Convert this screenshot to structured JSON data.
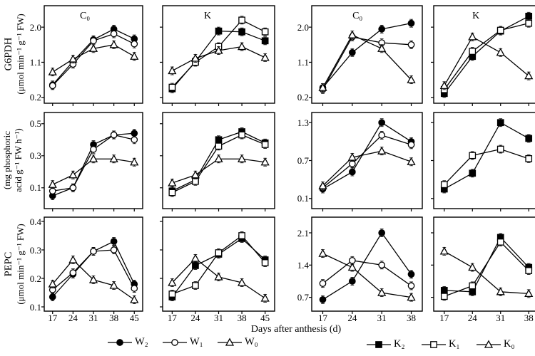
{
  "figure": {
    "xlabel": "Days after anthesis (d)",
    "rows": [
      {
        "line1": "G6PDH",
        "line2": "(μmol min⁻¹ g⁻¹ FW)"
      },
      {
        "line1": "(mg phosphoric",
        "line2": "acid g⁻¹ FW h⁻¹)"
      },
      {
        "line1": "PEPC",
        "line2": "(μmol min⁻¹ g⁻¹ FW)"
      }
    ],
    "colors": {
      "foreground": "#000000",
      "background": "#ffffff"
    }
  },
  "legend": {
    "left": [
      {
        "label": "W₂",
        "marker": "filled-circle"
      },
      {
        "label": "W₁",
        "marker": "open-circle"
      },
      {
        "label": "W₀",
        "marker": "open-triangle"
      }
    ],
    "right": [
      {
        "label": "K₂",
        "marker": "filled-square"
      },
      {
        "label": "K₁",
        "marker": "open-square"
      },
      {
        "label": "K₀",
        "marker": "open-triangle"
      }
    ]
  },
  "chart_data": {
    "type": "line",
    "xlabel": "Days after anthesis (d)",
    "grid": false,
    "error_bars": true,
    "panels": [
      {
        "name": "g6pdh-c0-water",
        "group": "left",
        "row": 0,
        "col": 0,
        "title": "C₀",
        "x": [
          17,
          24,
          31,
          38,
          45
        ],
        "ylim": [
          0.05,
          2.55
        ],
        "yticks": [
          0.2,
          1.1,
          2.0
        ],
        "series": [
          {
            "name": "W₂",
            "marker": "filled-circle",
            "values": [
              0.52,
              1.12,
              1.68,
              1.95,
              1.7
            ]
          },
          {
            "name": "W₁",
            "marker": "open-circle",
            "values": [
              0.5,
              1.05,
              1.65,
              1.83,
              1.57
            ]
          },
          {
            "name": "W₀",
            "marker": "open-triangle",
            "values": [
              0.85,
              1.18,
              1.45,
              1.55,
              1.25
            ]
          }
        ]
      },
      {
        "name": "g6pdh-k-potassium",
        "group": "left",
        "row": 0,
        "col": 1,
        "title": "K",
        "x": [
          17,
          24,
          31,
          38,
          45
        ],
        "ylim": [
          0.05,
          2.55
        ],
        "yticks": [
          0.2,
          1.1,
          2.0
        ],
        "series": [
          {
            "name": "K₂",
            "marker": "filled-square",
            "values": [
              0.42,
              1.12,
              1.9,
              1.88,
              1.65
            ]
          },
          {
            "name": "K₁",
            "marker": "open-square",
            "values": [
              0.46,
              1.1,
              1.5,
              2.18,
              1.88
            ]
          },
          {
            "name": "K₀",
            "marker": "open-triangle",
            "values": [
              0.88,
              1.2,
              1.4,
              1.5,
              1.22
            ]
          }
        ]
      },
      {
        "name": "g6pdh-c0-right",
        "group": "right",
        "row": 0,
        "col": 0,
        "title": "C₀",
        "x": [
          17,
          24,
          31,
          38
        ],
        "ylim": [
          0.05,
          2.55
        ],
        "yticks": [
          0.2,
          1.1,
          2.0
        ],
        "series": [
          {
            "name": "W₂",
            "marker": "filled-circle",
            "values": [
              0.45,
              1.35,
              1.95,
              2.1
            ]
          },
          {
            "name": "W₁",
            "marker": "open-circle",
            "values": [
              0.4,
              1.75,
              1.6,
              1.55
            ]
          },
          {
            "name": "W₀",
            "marker": "open-triangle",
            "values": [
              0.45,
              1.8,
              1.45,
              0.65
            ]
          }
        ]
      },
      {
        "name": "g6pdh-k-right",
        "group": "right",
        "row": 0,
        "col": 1,
        "title": "K",
        "x": [
          17,
          24,
          31,
          38
        ],
        "ylim": [
          0.05,
          2.55
        ],
        "yticks": [
          0.2,
          1.1,
          2.0
        ],
        "series": [
          {
            "name": "K₂",
            "marker": "filled-square",
            "values": [
              0.3,
              1.25,
              1.9,
              2.28
            ]
          },
          {
            "name": "K₁",
            "marker": "open-square",
            "values": [
              0.4,
              1.38,
              1.92,
              2.1
            ]
          },
          {
            "name": "K₀",
            "marker": "open-triangle",
            "values": [
              0.5,
              1.75,
              1.35,
              0.75
            ]
          }
        ]
      },
      {
        "name": "atpase-c0-water",
        "group": "left",
        "row": 1,
        "col": 0,
        "title": "",
        "x": [
          17,
          24,
          31,
          38,
          45
        ],
        "ylim": [
          -0.03,
          0.57
        ],
        "yticks": [
          0.1,
          0.3,
          0.5
        ],
        "series": [
          {
            "name": "W₂",
            "marker": "filled-circle",
            "values": [
              0.05,
              0.1,
              0.37,
              0.43,
              0.44
            ]
          },
          {
            "name": "W₁",
            "marker": "open-circle",
            "values": [
              0.08,
              0.1,
              0.34,
              0.43,
              0.4
            ]
          },
          {
            "name": "W₀",
            "marker": "open-triangle",
            "values": [
              0.12,
              0.18,
              0.28,
              0.28,
              0.26
            ]
          }
        ]
      },
      {
        "name": "atpase-k-potassium",
        "group": "left",
        "row": 1,
        "col": 1,
        "title": "",
        "x": [
          17,
          24,
          31,
          38,
          45
        ],
        "ylim": [
          -0.03,
          0.57
        ],
        "yticks": [
          0.1,
          0.3,
          0.5
        ],
        "series": [
          {
            "name": "K₂",
            "marker": "filled-square",
            "values": [
              0.08,
              0.15,
              0.4,
              0.45,
              0.38
            ]
          },
          {
            "name": "K₁",
            "marker": "open-square",
            "values": [
              0.07,
              0.14,
              0.36,
              0.43,
              0.37
            ]
          },
          {
            "name": "K₀",
            "marker": "open-triangle",
            "values": [
              0.13,
              0.18,
              0.28,
              0.28,
              0.26
            ]
          }
        ]
      },
      {
        "name": "atpase-c0-right",
        "group": "right",
        "row": 1,
        "col": 0,
        "title": "",
        "x": [
          17,
          24,
          31,
          38
        ],
        "ylim": [
          -0.06,
          1.46
        ],
        "yticks": [
          0.1,
          0.7,
          1.3
        ],
        "series": [
          {
            "name": "W₂",
            "marker": "filled-circle",
            "values": [
              0.25,
              0.52,
              1.3,
              1.0
            ]
          },
          {
            "name": "W₁",
            "marker": "open-circle",
            "values": [
              0.27,
              0.65,
              1.1,
              0.95
            ]
          },
          {
            "name": "W₀",
            "marker": "open-triangle",
            "values": [
              0.3,
              0.75,
              0.85,
              0.68
            ]
          }
        ]
      },
      {
        "name": "atpase-k-right",
        "group": "right",
        "row": 1,
        "col": 1,
        "title": "",
        "x": [
          17,
          24,
          31,
          38
        ],
        "ylim": [
          -0.06,
          1.46
        ],
        "yticks": [
          0.1,
          0.7,
          1.3
        ],
        "series": [
          {
            "name": "K₂",
            "marker": "filled-square",
            "values": [
              0.25,
              0.5,
              1.3,
              1.05
            ]
          },
          {
            "name": "K₁",
            "marker": "open-square",
            "values": [
              0.32,
              0.78,
              0.88,
              0.73
            ]
          }
        ]
      },
      {
        "name": "pepc-c0-water",
        "group": "left",
        "row": 2,
        "col": 0,
        "title": "",
        "x": [
          17,
          24,
          31,
          38,
          45
        ],
        "ylim": [
          0.085,
          0.415
        ],
        "yticks": [
          0.1,
          0.2,
          0.3,
          0.4
        ],
        "series": [
          {
            "name": "W₂",
            "marker": "filled-circle",
            "values": [
              0.135,
              0.215,
              0.295,
              0.33,
              0.18
            ]
          },
          {
            "name": "W₁",
            "marker": "open-circle",
            "values": [
              0.16,
              0.22,
              0.295,
              0.3,
              0.165
            ]
          },
          {
            "name": "W₀",
            "marker": "open-triangle",
            "values": [
              0.18,
              0.265,
              0.195,
              0.175,
              0.125
            ]
          }
        ]
      },
      {
        "name": "pepc-k-potassium",
        "group": "left",
        "row": 2,
        "col": 1,
        "title": "",
        "x": [
          17,
          24,
          31,
          38,
          45
        ],
        "ylim": [
          0.085,
          0.415
        ],
        "yticks": [
          0.1,
          0.2,
          0.3,
          0.4
        ],
        "series": [
          {
            "name": "K₂",
            "marker": "filled-square",
            "values": [
              0.135,
              0.245,
              0.285,
              0.34,
              0.265
            ]
          },
          {
            "name": "K₁",
            "marker": "open-square",
            "values": [
              0.145,
              0.175,
              0.29,
              0.35,
              0.255
            ]
          },
          {
            "name": "K₀",
            "marker": "open-triangle",
            "values": [
              0.185,
              0.27,
              0.205,
              0.185,
              0.13
            ]
          }
        ]
      },
      {
        "name": "pepc-c0-right",
        "group": "right",
        "row": 2,
        "col": 0,
        "title": "",
        "x": [
          17,
          24,
          31,
          38
        ],
        "ylim": [
          0.4,
          2.44
        ],
        "yticks": [
          0.7,
          1.4,
          2.1
        ],
        "series": [
          {
            "name": "W₂",
            "marker": "filled-circle",
            "values": [
              0.65,
              1.05,
              2.1,
              1.2
            ]
          },
          {
            "name": "W₁",
            "marker": "open-circle",
            "values": [
              1.0,
              1.5,
              1.4,
              0.95
            ]
          },
          {
            "name": "W₀",
            "marker": "open-triangle",
            "values": [
              1.65,
              1.35,
              0.8,
              0.7
            ]
          }
        ]
      },
      {
        "name": "pepc-k-right",
        "group": "right",
        "row": 2,
        "col": 1,
        "title": "",
        "x": [
          17,
          24,
          31,
          38
        ],
        "ylim": [
          0.4,
          2.44
        ],
        "yticks": [
          0.7,
          1.4,
          2.1
        ],
        "series": [
          {
            "name": "K₂",
            "marker": "filled-square",
            "values": [
              0.85,
              0.82,
              2.0,
              1.35
            ]
          },
          {
            "name": "K₁",
            "marker": "open-square",
            "values": [
              0.72,
              0.95,
              1.9,
              1.28
            ]
          },
          {
            "name": "K₀",
            "marker": "open-triangle",
            "values": [
              1.7,
              1.35,
              0.82,
              0.78
            ]
          }
        ]
      }
    ]
  }
}
